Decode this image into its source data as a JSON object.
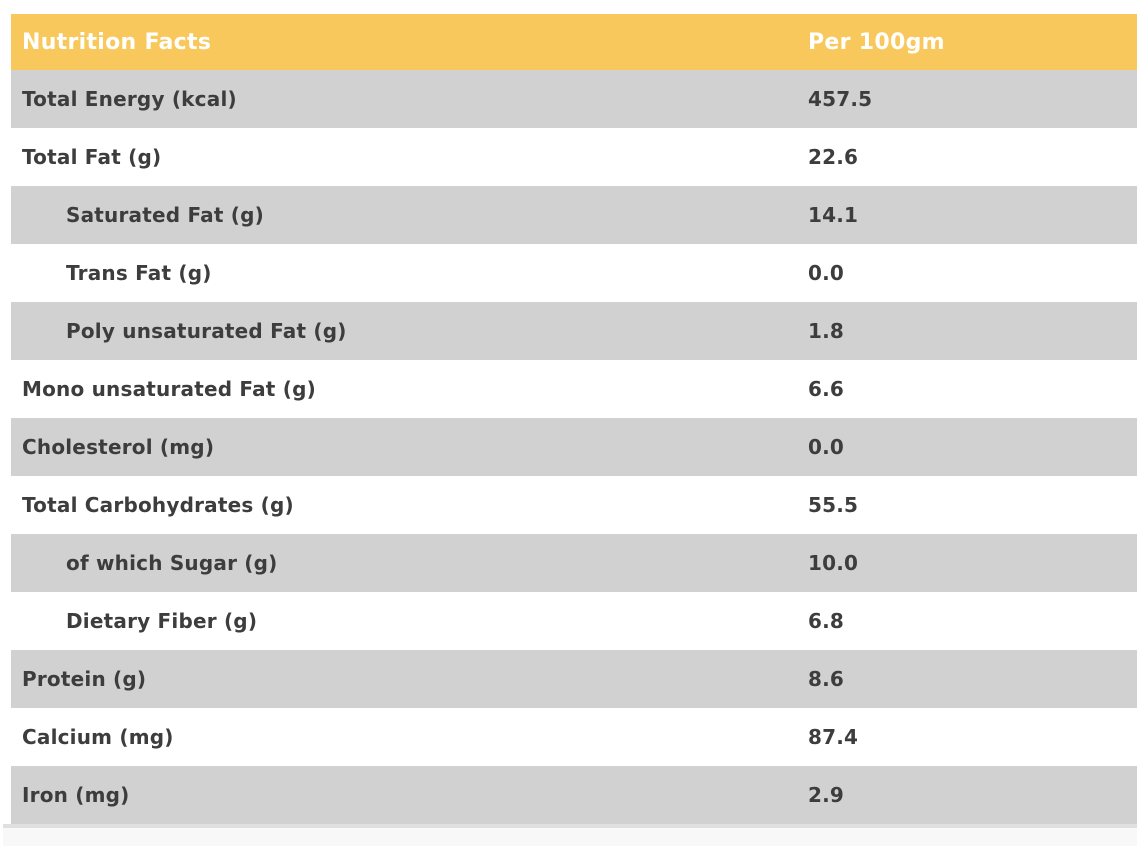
{
  "chart_data": {
    "type": "table",
    "title": "Nutrition Facts",
    "columns": [
      "Nutrition Facts",
      "Per 100gm"
    ],
    "rows": [
      {
        "label": "Total Energy (kcal)",
        "value": "457.5",
        "indent": false
      },
      {
        "label": "Total Fat (g)",
        "value": "22.6",
        "indent": false
      },
      {
        "label": "Saturated Fat (g)",
        "value": "14.1",
        "indent": true
      },
      {
        "label": "Trans Fat (g)",
        "value": "0.0",
        "indent": true
      },
      {
        "label": "Poly unsaturated Fat (g)",
        "value": "1.8",
        "indent": true
      },
      {
        "label": "Mono unsaturated Fat (g)",
        "value": "6.6",
        "indent": false
      },
      {
        "label": "Cholesterol (mg)",
        "value": "0.0",
        "indent": false
      },
      {
        "label": "Total Carbohydrates (g)",
        "value": "55.5",
        "indent": false
      },
      {
        "label": "of which Sugar (g)",
        "value": "10.0",
        "indent": true
      },
      {
        "label": "Dietary Fiber (g)",
        "value": "6.8",
        "indent": true
      },
      {
        "label": "Protein (g)",
        "value": "8.6",
        "indent": false
      },
      {
        "label": "Calcium (mg)",
        "value": "87.4",
        "indent": false
      },
      {
        "label": "Iron (mg)",
        "value": "2.9",
        "indent": false
      }
    ],
    "layout": {
      "striped": true,
      "first_body_row_shaded": true
    }
  },
  "colors": {
    "header_bg": "#F9C85C",
    "header_text": "#FFFFFF",
    "row_shade_bg": "#D1D1D1",
    "row_plain_bg": "#FFFFFF",
    "body_text": "#3D3D3D",
    "page_bg": "#FFFFFF",
    "footer_strip_bg": "#F8F8F8",
    "footer_strip_border": "#E0E0E0"
  }
}
